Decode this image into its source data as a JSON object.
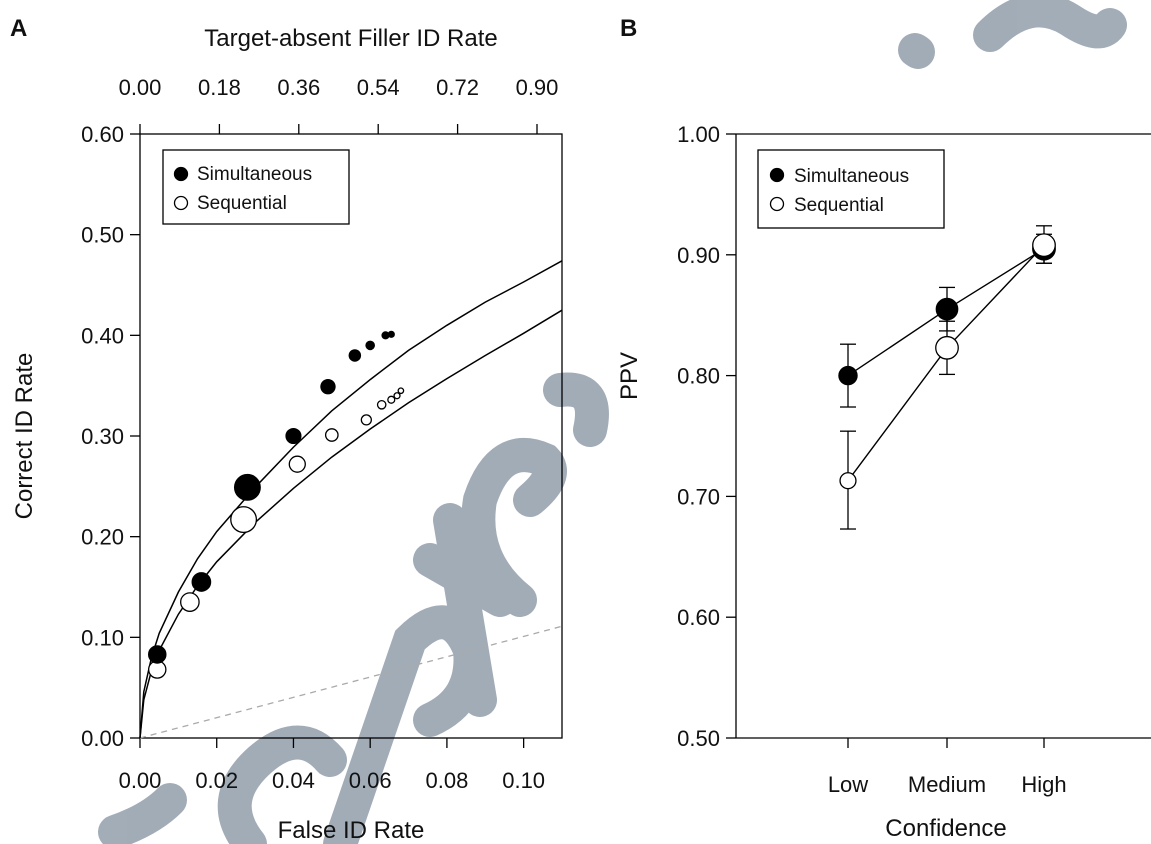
{
  "watermark": {
    "text": "Accepted",
    "color": "#98a4b0"
  },
  "chart_data": [
    {
      "panel": "A",
      "type": "scatter",
      "xlabel": "False ID Rate",
      "x2label": "Target-absent Filler ID Rate",
      "ylabel": "Correct ID Rate",
      "xlim": [
        0,
        0.11
      ],
      "ylim": [
        0,
        0.6
      ],
      "x_ticks": [
        "0.00",
        "0.02",
        "0.04",
        "0.06",
        "0.08",
        "0.10"
      ],
      "x2_ticks": [
        "0.00",
        "0.18",
        "0.36",
        "0.54",
        "0.72",
        "0.90"
      ],
      "y_ticks": [
        "0.00",
        "0.10",
        "0.20",
        "0.30",
        "0.40",
        "0.50",
        "0.60"
      ],
      "legend": {
        "position": "top-left",
        "entries": [
          "Simultaneous",
          "Sequential"
        ]
      },
      "chance_line": {
        "from": [
          0,
          0
        ],
        "to": [
          0.11,
          0.111
        ],
        "style": "dashed",
        "color": "#aaaaaa"
      },
      "series": [
        {
          "name": "Simultaneous",
          "fill": "#000000",
          "points": [
            {
              "x": 0.0045,
              "y": 0.083,
              "weight": 0.55
            },
            {
              "x": 0.016,
              "y": 0.155,
              "weight": 0.6
            },
            {
              "x": 0.028,
              "y": 0.249,
              "weight": 0.9
            },
            {
              "x": 0.04,
              "y": 0.3,
              "weight": 0.45
            },
            {
              "x": 0.049,
              "y": 0.349,
              "weight": 0.42
            },
            {
              "x": 0.056,
              "y": 0.38,
              "weight": 0.3
            },
            {
              "x": 0.06,
              "y": 0.39,
              "weight": 0.18
            },
            {
              "x": 0.064,
              "y": 0.4,
              "weight": 0.12
            },
            {
              "x": 0.0655,
              "y": 0.401,
              "weight": 0.08
            }
          ],
          "curve": [
            [
              0,
              0
            ],
            [
              0.001,
              0.046
            ],
            [
              0.003,
              0.08
            ],
            [
              0.005,
              0.104
            ],
            [
              0.01,
              0.145
            ],
            [
              0.015,
              0.178
            ],
            [
              0.02,
              0.205
            ],
            [
              0.03,
              0.249
            ],
            [
              0.04,
              0.289
            ],
            [
              0.05,
              0.325
            ],
            [
              0.06,
              0.356
            ],
            [
              0.07,
              0.385
            ],
            [
              0.08,
              0.41
            ],
            [
              0.09,
              0.433
            ],
            [
              0.1,
              0.453
            ],
            [
              0.11,
              0.474
            ]
          ]
        },
        {
          "name": "Sequential",
          "fill": "#ffffff",
          "points": [
            {
              "x": 0.0045,
              "y": 0.068,
              "weight": 0.55
            },
            {
              "x": 0.013,
              "y": 0.135,
              "weight": 0.6
            },
            {
              "x": 0.027,
              "y": 0.217,
              "weight": 0.9
            },
            {
              "x": 0.041,
              "y": 0.272,
              "weight": 0.5
            },
            {
              "x": 0.05,
              "y": 0.301,
              "weight": 0.35
            },
            {
              "x": 0.059,
              "y": 0.316,
              "weight": 0.25
            },
            {
              "x": 0.063,
              "y": 0.331,
              "weight": 0.18
            },
            {
              "x": 0.0655,
              "y": 0.336,
              "weight": 0.12
            },
            {
              "x": 0.067,
              "y": 0.34,
              "weight": 0.08
            },
            {
              "x": 0.068,
              "y": 0.345,
              "weight": 0.06
            }
          ],
          "curve": [
            [
              0,
              0
            ],
            [
              0.001,
              0.038
            ],
            [
              0.003,
              0.067
            ],
            [
              0.005,
              0.087
            ],
            [
              0.01,
              0.123
            ],
            [
              0.015,
              0.151
            ],
            [
              0.02,
              0.175
            ],
            [
              0.03,
              0.214
            ],
            [
              0.04,
              0.248
            ],
            [
              0.05,
              0.279
            ],
            [
              0.06,
              0.307
            ],
            [
              0.07,
              0.333
            ],
            [
              0.08,
              0.357
            ],
            [
              0.09,
              0.38
            ],
            [
              0.1,
              0.402
            ],
            [
              0.11,
              0.425
            ]
          ]
        }
      ]
    },
    {
      "panel": "B",
      "type": "line",
      "xlabel": "Confidence",
      "ylabel": "PPV",
      "categories": [
        "Low",
        "Medium",
        "High"
      ],
      "ylim": [
        0.5,
        1.0
      ],
      "y_ticks": [
        "0.50",
        "0.60",
        "0.70",
        "0.80",
        "0.90",
        "1.00"
      ],
      "legend": {
        "position": "top-left",
        "entries": [
          "Simultaneous",
          "Sequential"
        ]
      },
      "series": [
        {
          "name": "Simultaneous",
          "fill": "#000000",
          "values": [
            0.8,
            0.855,
            0.905
          ],
          "error": [
            [
              0.774,
              0.826
            ],
            [
              0.837,
              0.873
            ],
            [
              0.893,
              0.917
            ]
          ],
          "weight": [
            0.55,
            0.7,
            0.75
          ]
        },
        {
          "name": "Sequential",
          "fill": "#ffffff",
          "values": [
            0.713,
            0.823,
            0.908
          ],
          "error": [
            [
              0.673,
              0.754
            ],
            [
              0.801,
              0.845
            ],
            [
              0.893,
              0.924
            ]
          ],
          "weight": [
            0.45,
            0.75,
            0.75
          ]
        }
      ]
    }
  ]
}
